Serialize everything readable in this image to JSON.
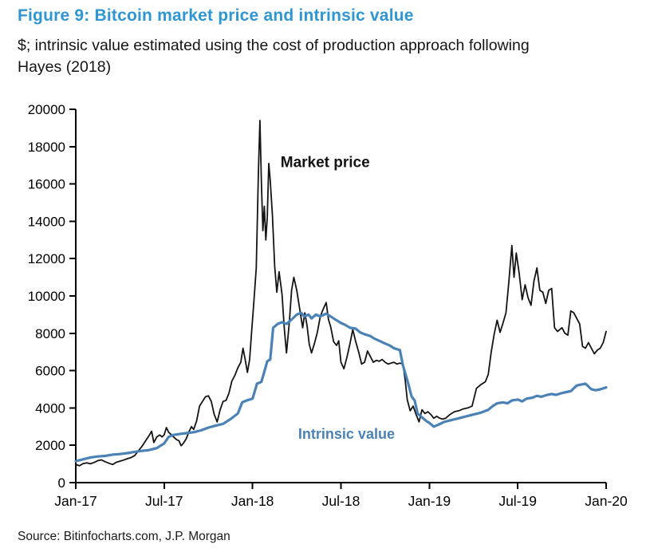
{
  "figure": {
    "title": "Figure 9: Bitcoin market price and intrinsic value",
    "subtitle_line1": "$; intrinsic value estimated using the cost of production approach following",
    "subtitle_line2": "Hayes (2018)",
    "source": "Source: Bitinfocharts.com, J.P. Morgan"
  },
  "colors": {
    "title_blue": "#2E96D2",
    "market_line": "#141414",
    "intrinsic_line": "#4A82B6",
    "axis": "#000000"
  },
  "chart_data": {
    "type": "line",
    "title": "Figure 9: Bitcoin market price and intrinsic value",
    "xlabel": "",
    "ylabel": "$",
    "x_unit": "months since Jan-2017",
    "x_range": [
      0,
      36
    ],
    "y_range": [
      0,
      20000
    ],
    "grid": false,
    "legend_position": "inline-annotations",
    "y_ticks": [
      0,
      2000,
      4000,
      6000,
      8000,
      10000,
      12000,
      14000,
      16000,
      18000,
      20000
    ],
    "x_ticks": [
      {
        "label": "Jan-17",
        "t": 0
      },
      {
        "label": "Jul-17",
        "t": 6
      },
      {
        "label": "Jan-18",
        "t": 12
      },
      {
        "label": "Jul-18",
        "t": 18
      },
      {
        "label": "Jan-19",
        "t": 24
      },
      {
        "label": "Jul-19",
        "t": 30
      },
      {
        "label": "Jan-20",
        "t": 36
      }
    ],
    "series": [
      {
        "name": "Market price",
        "color": "#141414",
        "width": 1.8,
        "points": [
          [
            0,
            980
          ],
          [
            0.25,
            900
          ],
          [
            0.5,
            1020
          ],
          [
            0.75,
            1060
          ],
          [
            1,
            1010
          ],
          [
            1.25,
            1080
          ],
          [
            1.5,
            1180
          ],
          [
            1.75,
            1220
          ],
          [
            2,
            1120
          ],
          [
            2.25,
            1040
          ],
          [
            2.5,
            970
          ],
          [
            2.75,
            1090
          ],
          [
            3,
            1150
          ],
          [
            3.25,
            1210
          ],
          [
            3.5,
            1280
          ],
          [
            3.75,
            1340
          ],
          [
            4,
            1450
          ],
          [
            4.25,
            1700
          ],
          [
            4.5,
            1950
          ],
          [
            4.75,
            2250
          ],
          [
            5,
            2550
          ],
          [
            5.15,
            2750
          ],
          [
            5.3,
            2150
          ],
          [
            5.5,
            2450
          ],
          [
            5.7,
            2550
          ],
          [
            5.85,
            2450
          ],
          [
            6,
            2560
          ],
          [
            6.15,
            2950
          ],
          [
            6.3,
            2700
          ],
          [
            6.5,
            2550
          ],
          [
            6.7,
            2400
          ],
          [
            6.85,
            2300
          ],
          [
            7,
            2250
          ],
          [
            7.15,
            1980
          ],
          [
            7.3,
            2100
          ],
          [
            7.5,
            2350
          ],
          [
            7.7,
            2750
          ],
          [
            7.85,
            3000
          ],
          [
            8,
            2850
          ],
          [
            8.2,
            3300
          ],
          [
            8.4,
            4100
          ],
          [
            8.6,
            4350
          ],
          [
            8.8,
            4600
          ],
          [
            9,
            4650
          ],
          [
            9.2,
            4350
          ],
          [
            9.4,
            3650
          ],
          [
            9.6,
            3250
          ],
          [
            9.8,
            3900
          ],
          [
            10,
            4350
          ],
          [
            10.2,
            4400
          ],
          [
            10.4,
            4800
          ],
          [
            10.6,
            5450
          ],
          [
            10.8,
            5750
          ],
          [
            11,
            6150
          ],
          [
            11.2,
            6450
          ],
          [
            11.35,
            7200
          ],
          [
            11.5,
            6600
          ],
          [
            11.65,
            5900
          ],
          [
            11.8,
            6600
          ],
          [
            11.95,
            8200
          ],
          [
            12.1,
            9800
          ],
          [
            12.25,
            11500
          ],
          [
            12.4,
            16800
          ],
          [
            12.5,
            19400
          ],
          [
            12.6,
            16000
          ],
          [
            12.7,
            13500
          ],
          [
            12.8,
            14800
          ],
          [
            12.9,
            13000
          ],
          [
            13,
            14200
          ],
          [
            13.1,
            17100
          ],
          [
            13.2,
            16200
          ],
          [
            13.35,
            14300
          ],
          [
            13.5,
            11600
          ],
          [
            13.65,
            10200
          ],
          [
            13.8,
            11300
          ],
          [
            14,
            10100
          ],
          [
            14.15,
            8300
          ],
          [
            14.3,
            6950
          ],
          [
            14.5,
            8600
          ],
          [
            14.65,
            10300
          ],
          [
            14.8,
            11000
          ],
          [
            15,
            10300
          ],
          [
            15.2,
            9300
          ],
          [
            15.4,
            8300
          ],
          [
            15.55,
            9100
          ],
          [
            15.7,
            8400
          ],
          [
            15.85,
            7400
          ],
          [
            16,
            6950
          ],
          [
            16.2,
            7450
          ],
          [
            16.4,
            8050
          ],
          [
            16.6,
            8900
          ],
          [
            16.8,
            9300
          ],
          [
            17,
            9650
          ],
          [
            17.15,
            8750
          ],
          [
            17.3,
            8350
          ],
          [
            17.5,
            7550
          ],
          [
            17.7,
            7350
          ],
          [
            17.85,
            7600
          ],
          [
            18,
            6450
          ],
          [
            18.2,
            6100
          ],
          [
            18.4,
            6700
          ],
          [
            18.6,
            7400
          ],
          [
            18.8,
            8200
          ],
          [
            19,
            7550
          ],
          [
            19.2,
            7000
          ],
          [
            19.4,
            6350
          ],
          [
            19.6,
            6450
          ],
          [
            19.8,
            7050
          ],
          [
            20,
            6750
          ],
          [
            20.2,
            6450
          ],
          [
            20.4,
            6550
          ],
          [
            20.6,
            6500
          ],
          [
            20.8,
            6600
          ],
          [
            21,
            6450
          ],
          [
            21.2,
            6350
          ],
          [
            21.4,
            6400
          ],
          [
            21.6,
            6450
          ],
          [
            21.8,
            6350
          ],
          [
            22,
            6400
          ],
          [
            22.2,
            6350
          ],
          [
            22.35,
            5550
          ],
          [
            22.5,
            4450
          ],
          [
            22.7,
            3850
          ],
          [
            22.9,
            4100
          ],
          [
            23.1,
            3650
          ],
          [
            23.3,
            3250
          ],
          [
            23.5,
            3900
          ],
          [
            23.7,
            3700
          ],
          [
            23.9,
            3800
          ],
          [
            24.1,
            3650
          ],
          [
            24.3,
            3450
          ],
          [
            24.5,
            3550
          ],
          [
            24.7,
            3450
          ],
          [
            24.9,
            3400
          ],
          [
            25.1,
            3450
          ],
          [
            25.4,
            3650
          ],
          [
            25.7,
            3800
          ],
          [
            26,
            3850
          ],
          [
            26.3,
            3950
          ],
          [
            26.6,
            4000
          ],
          [
            26.9,
            4100
          ],
          [
            27.2,
            5050
          ],
          [
            27.5,
            5250
          ],
          [
            27.8,
            5400
          ],
          [
            28,
            5800
          ],
          [
            28.2,
            7000
          ],
          [
            28.4,
            7950
          ],
          [
            28.6,
            8700
          ],
          [
            28.8,
            8050
          ],
          [
            29,
            8550
          ],
          [
            29.2,
            9100
          ],
          [
            29.4,
            10800
          ],
          [
            29.6,
            12700
          ],
          [
            29.75,
            11000
          ],
          [
            29.9,
            12300
          ],
          [
            30.1,
            11200
          ],
          [
            30.3,
            9800
          ],
          [
            30.5,
            10600
          ],
          [
            30.7,
            9900
          ],
          [
            30.9,
            9500
          ],
          [
            31.1,
            10800
          ],
          [
            31.3,
            11500
          ],
          [
            31.5,
            10300
          ],
          [
            31.7,
            10200
          ],
          [
            31.9,
            9600
          ],
          [
            32.1,
            10300
          ],
          [
            32.3,
            10400
          ],
          [
            32.5,
            8300
          ],
          [
            32.7,
            8100
          ],
          [
            33,
            8300
          ],
          [
            33.2,
            8000
          ],
          [
            33.4,
            7900
          ],
          [
            33.6,
            9200
          ],
          [
            33.8,
            9100
          ],
          [
            34,
            8800
          ],
          [
            34.2,
            8500
          ],
          [
            34.4,
            7300
          ],
          [
            34.6,
            7200
          ],
          [
            34.8,
            7500
          ],
          [
            35,
            7200
          ],
          [
            35.2,
            6900
          ],
          [
            35.4,
            7100
          ],
          [
            35.6,
            7200
          ],
          [
            35.8,
            7500
          ],
          [
            36,
            8100
          ]
        ]
      },
      {
        "name": "Intrinsic value",
        "color": "#4A82B6",
        "width": 3.2,
        "points": [
          [
            0,
            1150
          ],
          [
            0.5,
            1250
          ],
          [
            1,
            1350
          ],
          [
            1.5,
            1400
          ],
          [
            2,
            1430
          ],
          [
            2.5,
            1500
          ],
          [
            3,
            1530
          ],
          [
            3.5,
            1580
          ],
          [
            4,
            1650
          ],
          [
            4.5,
            1700
          ],
          [
            5,
            1750
          ],
          [
            5.5,
            1850
          ],
          [
            6,
            2100
          ],
          [
            6.3,
            2450
          ],
          [
            6.6,
            2550
          ],
          [
            7,
            2600
          ],
          [
            7.5,
            2650
          ],
          [
            8,
            2700
          ],
          [
            8.5,
            2800
          ],
          [
            9,
            2950
          ],
          [
            9.5,
            3050
          ],
          [
            10,
            3150
          ],
          [
            10.5,
            3400
          ],
          [
            11,
            3700
          ],
          [
            11.3,
            4300
          ],
          [
            11.6,
            4400
          ],
          [
            12,
            4500
          ],
          [
            12.3,
            5300
          ],
          [
            12.6,
            5400
          ],
          [
            13,
            6500
          ],
          [
            13.2,
            6600
          ],
          [
            13.4,
            8300
          ],
          [
            13.7,
            8500
          ],
          [
            14,
            8600
          ],
          [
            14.3,
            8500
          ],
          [
            14.6,
            8700
          ],
          [
            15,
            9000
          ],
          [
            15.3,
            9100
          ],
          [
            15.5,
            8900
          ],
          [
            15.8,
            9000
          ],
          [
            16,
            8800
          ],
          [
            16.3,
            9000
          ],
          [
            16.6,
            8900
          ],
          [
            17,
            9050
          ],
          [
            17.3,
            8900
          ],
          [
            17.6,
            8750
          ],
          [
            18,
            8550
          ],
          [
            18.3,
            8450
          ],
          [
            18.6,
            8300
          ],
          [
            19,
            8250
          ],
          [
            19.3,
            8050
          ],
          [
            19.6,
            7950
          ],
          [
            20,
            7850
          ],
          [
            20.3,
            7700
          ],
          [
            20.6,
            7600
          ],
          [
            21,
            7450
          ],
          [
            21.3,
            7350
          ],
          [
            21.6,
            7200
          ],
          [
            22,
            7100
          ],
          [
            22.2,
            6300
          ],
          [
            22.5,
            5500
          ],
          [
            22.8,
            4600
          ],
          [
            23,
            4400
          ],
          [
            23.2,
            3700
          ],
          [
            23.5,
            3500
          ],
          [
            23.8,
            3300
          ],
          [
            24,
            3200
          ],
          [
            24.3,
            3000
          ],
          [
            24.6,
            3100
          ],
          [
            25,
            3250
          ],
          [
            25.5,
            3350
          ],
          [
            26,
            3450
          ],
          [
            26.5,
            3550
          ],
          [
            27,
            3650
          ],
          [
            27.5,
            3750
          ],
          [
            28,
            3900
          ],
          [
            28.3,
            4100
          ],
          [
            28.6,
            4250
          ],
          [
            29,
            4300
          ],
          [
            29.3,
            4250
          ],
          [
            29.6,
            4400
          ],
          [
            30,
            4450
          ],
          [
            30.3,
            4350
          ],
          [
            30.6,
            4500
          ],
          [
            31,
            4550
          ],
          [
            31.3,
            4650
          ],
          [
            31.6,
            4600
          ],
          [
            32,
            4700
          ],
          [
            32.3,
            4750
          ],
          [
            32.6,
            4700
          ],
          [
            33,
            4800
          ],
          [
            33.3,
            4850
          ],
          [
            33.6,
            4900
          ],
          [
            34,
            5200
          ],
          [
            34.3,
            5250
          ],
          [
            34.6,
            5300
          ],
          [
            35,
            5000
          ],
          [
            35.3,
            4950
          ],
          [
            35.6,
            5000
          ],
          [
            36,
            5100
          ]
        ]
      }
    ],
    "annotations": [
      {
        "text": "Market price",
        "t": 13.9,
        "v": 16900,
        "color": "#141414",
        "font_size": 19
      },
      {
        "text": "Intrinsic value",
        "t": 15.1,
        "v": 2350,
        "color": "#4A82B6",
        "font_size": 18
      }
    ]
  }
}
